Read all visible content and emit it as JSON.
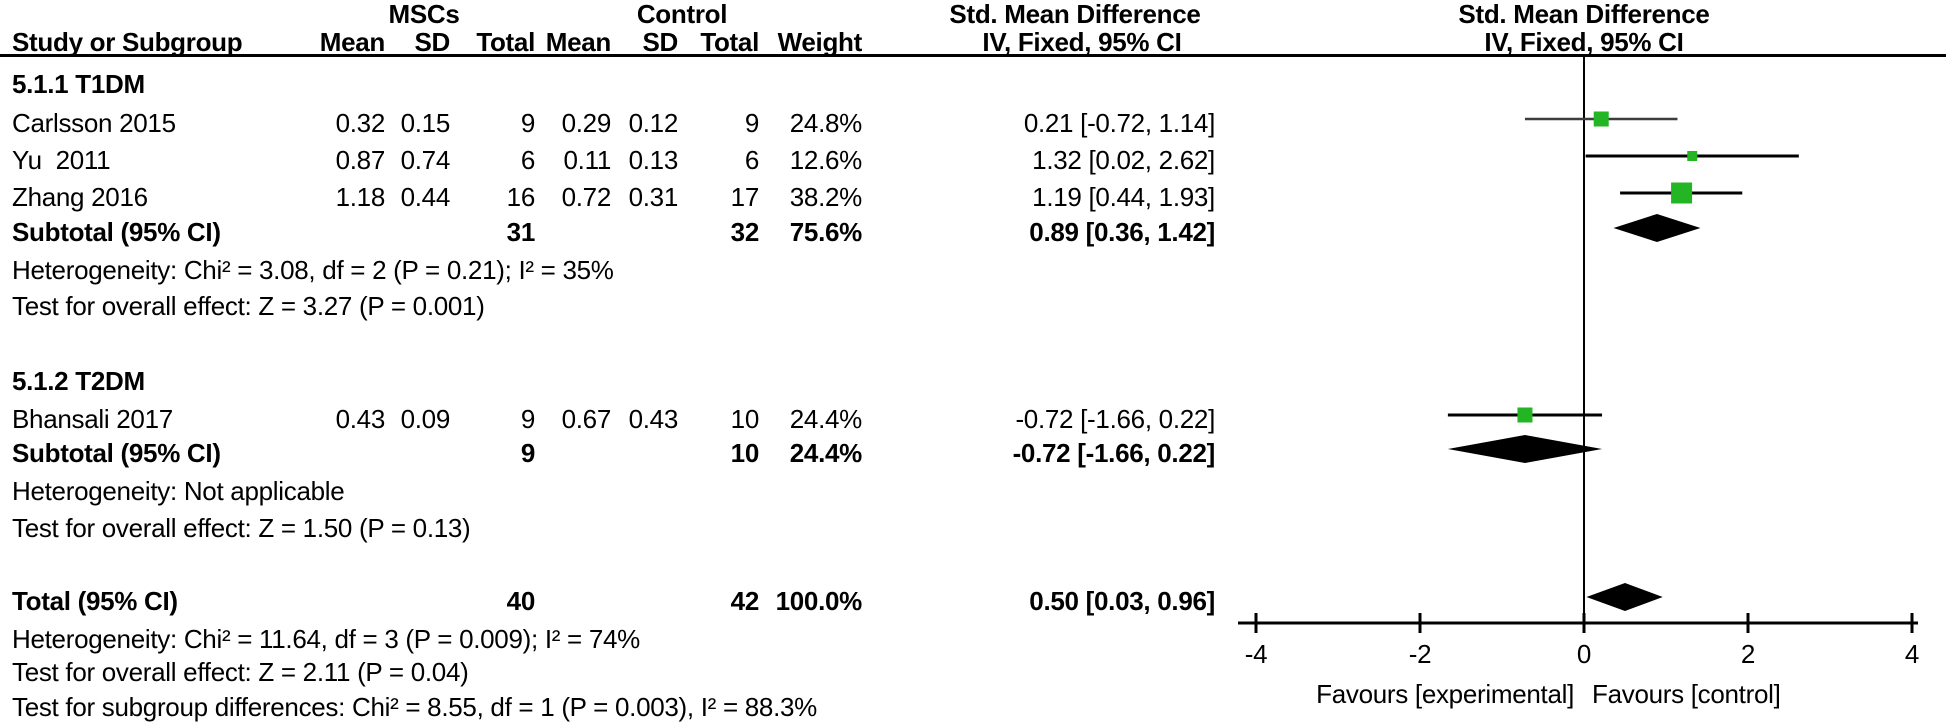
{
  "chart_data": {
    "type": "forest",
    "title_note": "Forest plot: MSCs vs Control, Std. Mean Difference, IV Fixed 95% CI",
    "effect_measure": "Std. Mean Difference",
    "method": "IV, Fixed, 95% CI",
    "axis": {
      "xlim_ticks": [
        -4,
        -2,
        0,
        2,
        4
      ],
      "tick_labels": [
        "-4",
        "-2",
        "0",
        "2",
        "4"
      ],
      "favours_left": "Favours [experimental]",
      "favours_right": "Favours [control]",
      "zero_line": 0
    },
    "header": {
      "group1": "MSCs",
      "group2": "Control",
      "smd_left": "Std. Mean Difference",
      "smd_right": "Std. Mean Difference",
      "method_left": "IV, Fixed, 95% CI",
      "method_right": "IV, Fixed, 95% CI",
      "study_col": "Study or Subgroup",
      "mean": "Mean",
      "sd": "SD",
      "total": "Total",
      "weight": "Weight"
    },
    "sections": [
      {
        "label": "5.1.1 T1DM",
        "studies": [
          {
            "study": "Carlsson 2015",
            "mean1": "0.32",
            "sd1": "0.15",
            "total1": "9",
            "mean2": "0.29",
            "sd2": "0.12",
            "total2": "9",
            "weight": "24.8%",
            "ci_text": "0.21 [-0.72, 1.14]",
            "est": 0.21,
            "lo": -0.72,
            "hi": 1.14,
            "sq": 15,
            "thin": true
          },
          {
            "study": "Yu  2011",
            "mean1": "0.87",
            "sd1": "0.74",
            "total1": "6",
            "mean2": "0.11",
            "sd2": "0.13",
            "total2": "6",
            "weight": "12.6%",
            "ci_text": "1.32 [0.02, 2.62]",
            "est": 1.32,
            "lo": 0.02,
            "hi": 2.62,
            "sq": 10,
            "thin": false
          },
          {
            "study": "Zhang 2016",
            "mean1": "1.18",
            "sd1": "0.44",
            "total1": "16",
            "mean2": "0.72",
            "sd2": "0.31",
            "total2": "17",
            "weight": "38.2%",
            "ci_text": "1.19 [0.44, 1.93]",
            "est": 1.19,
            "lo": 0.44,
            "hi": 1.93,
            "sq": 21,
            "thin": false
          }
        ],
        "subtotal": {
          "label": "Subtotal (95% CI)",
          "total1": "31",
          "total2": "32",
          "weight": "75.6%",
          "ci_text": "0.89 [0.36, 1.42]",
          "est": 0.89,
          "lo": 0.36,
          "hi": 1.42
        },
        "notes": [
          "Heterogeneity: Chi² = 3.08, df = 2 (P = 0.21); I² = 35%",
          "Test for overall effect: Z = 3.27 (P = 0.001)"
        ]
      },
      {
        "label": "5.1.2 T2DM",
        "studies": [
          {
            "study": "Bhansali 2017",
            "mean1": "0.43",
            "sd1": "0.09",
            "total1": "9",
            "mean2": "0.67",
            "sd2": "0.43",
            "total2": "10",
            "weight": "24.4%",
            "ci_text": "-0.72 [-1.66, 0.22]",
            "est": -0.72,
            "lo": -1.66,
            "hi": 0.22,
            "sq": 15,
            "thin": false
          }
        ],
        "subtotal": {
          "label": "Subtotal (95% CI)",
          "total1": "9",
          "total2": "10",
          "weight": "24.4%",
          "ci_text": "-0.72 [-1.66, 0.22]",
          "est": -0.72,
          "lo": -1.66,
          "hi": 0.22
        },
        "notes": [
          "Heterogeneity: Not applicable",
          "Test for overall effect: Z = 1.50 (P = 0.13)"
        ]
      }
    ],
    "total": {
      "label": "Total (95% CI)",
      "total1": "40",
      "total2": "42",
      "weight": "100.0%",
      "ci_text": "0.50 [0.03, 0.96]",
      "est": 0.5,
      "lo": 0.03,
      "hi": 0.96,
      "notes": [
        "Heterogeneity: Chi² = 11.64, df = 3 (P = 0.009); I² = 74%",
        "Test for overall effect: Z = 2.11 (P = 0.04)",
        "Test for subgroup differences: Chi² = 8.55, df = 1 (P = 0.003), I² = 88.3%"
      ]
    },
    "colors": {
      "square_green": "#24b524",
      "diamond_black": "#000000",
      "text": "#000000",
      "thin_line_gray": "#3d3d3d"
    }
  }
}
